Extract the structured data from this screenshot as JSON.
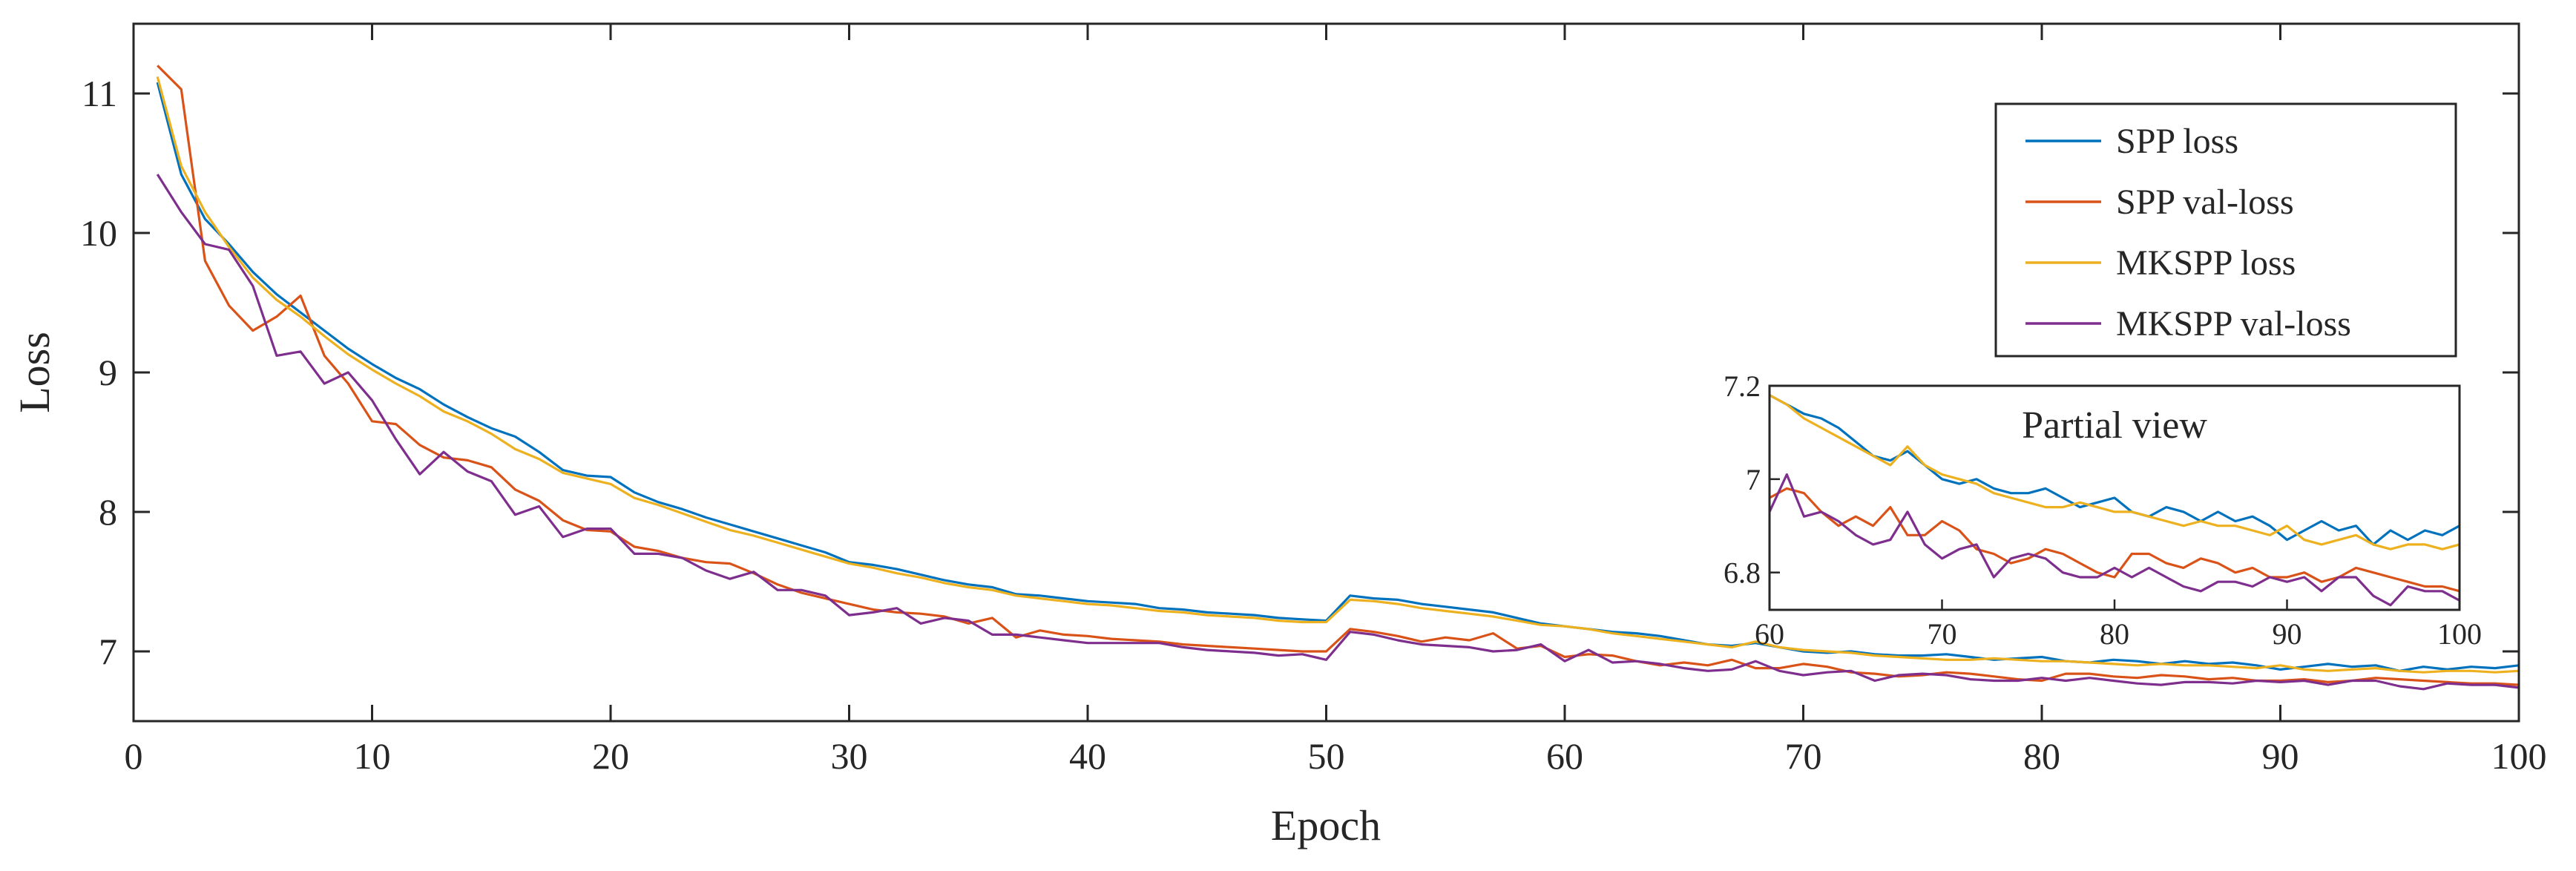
{
  "chart_data": {
    "type": "line",
    "title": "",
    "xlabel": "Epoch",
    "ylabel": "Loss",
    "xlim": [
      0,
      100
    ],
    "ylim": [
      6.5,
      11.5
    ],
    "xticks": [
      "0",
      "10",
      "20",
      "30",
      "40",
      "50",
      "60",
      "70",
      "80",
      "90",
      "100"
    ],
    "yticks": [
      "7",
      "8",
      "9",
      "10",
      "11"
    ],
    "grid": false,
    "legend_position": "top-right",
    "x": [
      1,
      2,
      3,
      4,
      5,
      6,
      7,
      8,
      9,
      10,
      11,
      12,
      13,
      14,
      15,
      16,
      17,
      18,
      19,
      20,
      21,
      22,
      23,
      24,
      25,
      26,
      27,
      28,
      29,
      30,
      31,
      32,
      33,
      34,
      35,
      36,
      37,
      38,
      39,
      40,
      41,
      42,
      43,
      44,
      45,
      46,
      47,
      48,
      49,
      50,
      51,
      52,
      53,
      54,
      55,
      56,
      57,
      58,
      59,
      60,
      61,
      62,
      63,
      64,
      65,
      66,
      67,
      68,
      69,
      70,
      71,
      72,
      73,
      74,
      75,
      76,
      77,
      78,
      79,
      80,
      81,
      82,
      83,
      84,
      85,
      86,
      87,
      88,
      89,
      90,
      91,
      92,
      93,
      94,
      95,
      96,
      97,
      98,
      99,
      100
    ],
    "series": [
      {
        "name": "SPP loss",
        "color": "#0072BD",
        "values": [
          11.08,
          10.42,
          10.1,
          9.92,
          9.72,
          9.56,
          9.43,
          9.3,
          9.17,
          9.06,
          8.96,
          8.88,
          8.77,
          8.68,
          8.6,
          8.54,
          8.43,
          8.3,
          8.26,
          8.25,
          8.14,
          8.07,
          8.02,
          7.96,
          7.91,
          7.86,
          7.81,
          7.76,
          7.71,
          7.64,
          7.62,
          7.59,
          7.55,
          7.51,
          7.48,
          7.46,
          7.41,
          7.4,
          7.38,
          7.36,
          7.35,
          7.34,
          7.31,
          7.3,
          7.28,
          7.27,
          7.26,
          7.24,
          7.23,
          7.22,
          7.4,
          7.38,
          7.37,
          7.34,
          7.32,
          7.3,
          7.28,
          7.24,
          7.2,
          7.18,
          7.16,
          7.14,
          7.13,
          7.11,
          7.08,
          7.05,
          7.04,
          7.06,
          7.03,
          7.0,
          6.99,
          7.0,
          6.98,
          6.97,
          6.97,
          6.98,
          6.96,
          6.94,
          6.95,
          6.96,
          6.93,
          6.92,
          6.94,
          6.93,
          6.91,
          6.93,
          6.91,
          6.92,
          6.9,
          6.87,
          6.89,
          6.91,
          6.89,
          6.9,
          6.86,
          6.89,
          6.87,
          6.89,
          6.88,
          6.9
        ]
      },
      {
        "name": "SPP val-loss",
        "color": "#D95319",
        "values": [
          11.2,
          11.03,
          9.8,
          9.48,
          9.3,
          9.4,
          9.55,
          9.12,
          8.92,
          8.65,
          8.63,
          8.48,
          8.39,
          8.37,
          8.32,
          8.16,
          8.08,
          7.94,
          7.87,
          7.86,
          7.75,
          7.72,
          7.67,
          7.64,
          7.63,
          7.56,
          7.48,
          7.42,
          7.38,
          7.34,
          7.3,
          7.28,
          7.27,
          7.25,
          7.2,
          7.24,
          7.1,
          7.15,
          7.12,
          7.11,
          7.09,
          7.08,
          7.07,
          7.05,
          7.04,
          7.03,
          7.02,
          7.01,
          7.0,
          7.0,
          7.16,
          7.14,
          7.11,
          7.07,
          7.1,
          7.08,
          7.13,
          7.02,
          7.04,
          6.96,
          6.98,
          6.97,
          6.93,
          6.9,
          6.92,
          6.9,
          6.94,
          6.88,
          6.88,
          6.91,
          6.89,
          6.85,
          6.84,
          6.82,
          6.83,
          6.85,
          6.84,
          6.82,
          6.8,
          6.79,
          6.84,
          6.84,
          6.82,
          6.81,
          6.83,
          6.82,
          6.8,
          6.81,
          6.79,
          6.79,
          6.8,
          6.78,
          6.79,
          6.81,
          6.8,
          6.79,
          6.78,
          6.77,
          6.77,
          6.76
        ]
      },
      {
        "name": "MKSPP loss",
        "color": "#EDB120",
        "values": [
          11.12,
          10.48,
          10.15,
          9.9,
          9.68,
          9.52,
          9.4,
          9.26,
          9.13,
          9.02,
          8.92,
          8.83,
          8.72,
          8.65,
          8.56,
          8.45,
          8.38,
          8.28,
          8.24,
          8.2,
          8.1,
          8.05,
          7.99,
          7.93,
          7.87,
          7.83,
          7.78,
          7.73,
          7.68,
          7.63,
          7.6,
          7.56,
          7.53,
          7.49,
          7.46,
          7.44,
          7.4,
          7.38,
          7.36,
          7.34,
          7.33,
          7.31,
          7.29,
          7.28,
          7.26,
          7.25,
          7.24,
          7.22,
          7.21,
          7.21,
          7.37,
          7.36,
          7.34,
          7.31,
          7.29,
          7.27,
          7.25,
          7.22,
          7.19,
          7.18,
          7.16,
          7.13,
          7.11,
          7.09,
          7.07,
          7.05,
          7.03,
          7.07,
          7.03,
          7.01,
          7.0,
          6.99,
          6.97,
          6.96,
          6.95,
          6.94,
          6.94,
          6.95,
          6.94,
          6.93,
          6.93,
          6.92,
          6.91,
          6.9,
          6.91,
          6.9,
          6.9,
          6.89,
          6.88,
          6.9,
          6.87,
          6.86,
          6.87,
          6.88,
          6.86,
          6.85,
          6.86,
          6.86,
          6.85,
          6.86
        ]
      },
      {
        "name": "MKSPP val-loss",
        "color": "#7E2F8E",
        "values": [
          10.42,
          10.15,
          9.92,
          9.88,
          9.62,
          9.12,
          9.15,
          8.92,
          9.0,
          8.8,
          8.52,
          8.27,
          8.43,
          8.29,
          8.22,
          7.98,
          8.04,
          7.82,
          7.88,
          7.88,
          7.7,
          7.7,
          7.67,
          7.58,
          7.52,
          7.57,
          7.44,
          7.44,
          7.4,
          7.26,
          7.28,
          7.31,
          7.2,
          7.24,
          7.22,
          7.12,
          7.12,
          7.1,
          7.08,
          7.06,
          7.06,
          7.06,
          7.06,
          7.03,
          7.01,
          7.0,
          6.99,
          6.97,
          6.98,
          6.94,
          7.14,
          7.12,
          7.08,
          7.05,
          7.04,
          7.03,
          7.0,
          7.01,
          7.05,
          6.93,
          7.01,
          6.92,
          6.93,
          6.91,
          6.88,
          6.86,
          6.87,
          6.93,
          6.86,
          6.83,
          6.85,
          6.86,
          6.79,
          6.83,
          6.84,
          6.83,
          6.8,
          6.79,
          6.79,
          6.81,
          6.79,
          6.81,
          6.79,
          6.77,
          6.76,
          6.78,
          6.78,
          6.77,
          6.79,
          6.78,
          6.79,
          6.76,
          6.79,
          6.79,
          6.75,
          6.73,
          6.77,
          6.76,
          6.76,
          6.74
        ]
      }
    ],
    "inset": {
      "title": "Partial view",
      "xlim": [
        60,
        100
      ],
      "ylim": [
        6.72,
        7.2
      ],
      "xticks": [
        "60",
        "70",
        "80",
        "90",
        "100"
      ],
      "yticks": [
        "6.8",
        "7",
        "7.2"
      ]
    }
  }
}
